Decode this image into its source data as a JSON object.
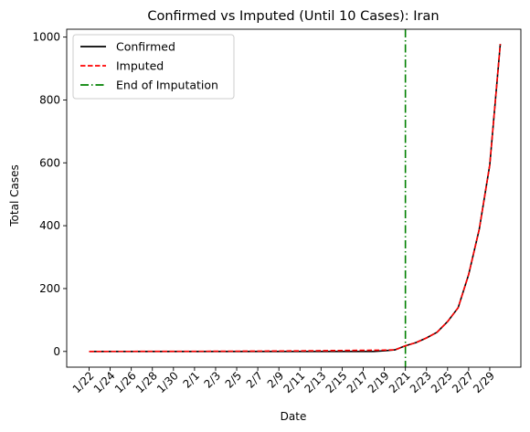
{
  "chart_data": {
    "type": "line",
    "title": "Confirmed vs Imputed (Until 10 Cases): Iran",
    "xlabel": "Date",
    "ylabel": "Total Cases",
    "x": [
      "1/22",
      "1/23",
      "1/24",
      "1/25",
      "1/26",
      "1/27",
      "1/28",
      "1/29",
      "1/30",
      "1/31",
      "2/1",
      "2/2",
      "2/3",
      "2/4",
      "2/5",
      "2/6",
      "2/7",
      "2/8",
      "2/9",
      "2/10",
      "2/11",
      "2/12",
      "2/13",
      "2/14",
      "2/15",
      "2/16",
      "2/17",
      "2/18",
      "2/19",
      "2/20",
      "2/21",
      "2/22",
      "2/23",
      "2/24",
      "2/25",
      "2/26",
      "2/27",
      "2/28",
      "2/29",
      "3/1"
    ],
    "x_tick_labels": [
      "1/22",
      "1/24",
      "1/26",
      "1/28",
      "1/30",
      "2/1",
      "2/3",
      "2/5",
      "2/7",
      "2/9",
      "2/11",
      "2/13",
      "2/15",
      "2/17",
      "2/19",
      "2/21",
      "2/23",
      "2/25",
      "2/27",
      "2/29"
    ],
    "ylim": [
      -50,
      1025
    ],
    "y_ticks": [
      0,
      200,
      400,
      600,
      800,
      1000
    ],
    "series": [
      {
        "name": "Confirmed",
        "color": "#000000",
        "style": "solid",
        "values": [
          0,
          0,
          0,
          0,
          0,
          0,
          0,
          0,
          0,
          0,
          0,
          0,
          0,
          0,
          0,
          0,
          0,
          0,
          0,
          0,
          0,
          0,
          0,
          0,
          0,
          0,
          0,
          0,
          2,
          5,
          18,
          28,
          43,
          61,
          95,
          139,
          245,
          388,
          593,
          978
        ]
      },
      {
        "name": "Imputed",
        "color": "#ff0000",
        "style": "dashed",
        "values": [
          0.05,
          0.07,
          0.09,
          0.11,
          0.14,
          0.17,
          0.21,
          0.25,
          0.3,
          0.36,
          0.43,
          0.51,
          0.6,
          0.7,
          0.82,
          0.95,
          1.1,
          1.27,
          1.46,
          1.67,
          1.9,
          2.15,
          2.42,
          2.7,
          3.0,
          3.3,
          3.6,
          3.9,
          4.2,
          5,
          18,
          28,
          43,
          61,
          95,
          139,
          245,
          388,
          593,
          978
        ]
      }
    ],
    "vline": {
      "name": "End of Imputation",
      "x": "2/21",
      "color": "#008000",
      "style": "dashdot"
    },
    "legend": {
      "placement": "upper-left"
    },
    "grid": false
  }
}
